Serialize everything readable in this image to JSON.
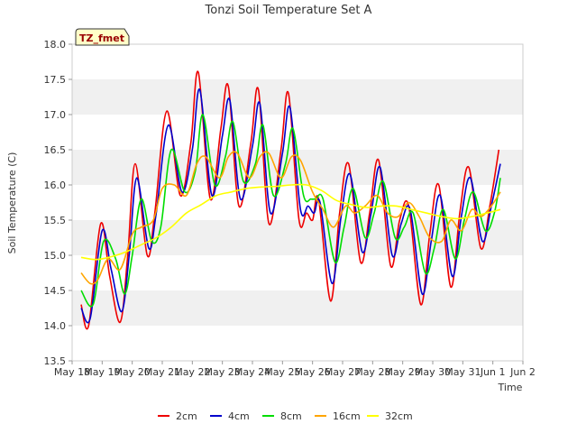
{
  "chart_data": {
    "type": "line",
    "title": "Tonzi Soil Temperature Set A",
    "xlabel": "Time",
    "ylabel": "Soil Temperature (C)",
    "annotation": "TZ_fmet",
    "xlim": [
      0,
      15
    ],
    "ylim": [
      13.5,
      18.0
    ],
    "x_ticks": [
      {
        "value": 0,
        "label": "May 18"
      },
      {
        "value": 1,
        "label": "May 19"
      },
      {
        "value": 2,
        "label": "May 20"
      },
      {
        "value": 3,
        "label": "May 21"
      },
      {
        "value": 4,
        "label": "May 22"
      },
      {
        "value": 5,
        "label": "May 23"
      },
      {
        "value": 6,
        "label": "May 24"
      },
      {
        "value": 7,
        "label": "May 25"
      },
      {
        "value": 8,
        "label": "May 26"
      },
      {
        "value": 9,
        "label": "May 27"
      },
      {
        "value": 10,
        "label": "May 28"
      },
      {
        "value": 11,
        "label": "May 29"
      },
      {
        "value": 12,
        "label": "May 30"
      },
      {
        "value": 13,
        "label": "May 31"
      },
      {
        "value": 14,
        "label": "Jun 1"
      },
      {
        "value": 15,
        "label": "Jun 2"
      }
    ],
    "y_ticks": [
      13.5,
      14.0,
      14.5,
      15.0,
      15.5,
      16.0,
      16.5,
      17.0,
      17.5,
      18.0
    ],
    "y_tick_labels": [
      "13.5",
      "14.0",
      "14.5",
      "15.0",
      "15.5",
      "16.0",
      "16.5",
      "17.0",
      "17.5",
      "18.0"
    ],
    "grid": "horizontal bands",
    "legend": "bottom",
    "series": [
      {
        "name": "2cm",
        "color": "#ee0000",
        "x": [
          0.3,
          0.55,
          0.95,
          1.25,
          1.6,
          1.85,
          2.1,
          2.5,
          2.75,
          3.15,
          3.6,
          3.95,
          4.2,
          4.6,
          4.95,
          5.2,
          5.55,
          5.95,
          6.2,
          6.55,
          6.95,
          7.2,
          7.55,
          7.8,
          8.0,
          8.2,
          8.6,
          8.9,
          9.2,
          9.6,
          9.9,
          10.2,
          10.6,
          10.9,
          11.2,
          11.6,
          11.9,
          12.2,
          12.6,
          12.9,
          13.2,
          13.6,
          13.9,
          14.2
        ],
        "values": [
          14.3,
          14.0,
          15.45,
          14.7,
          14.05,
          15.0,
          16.3,
          15.0,
          15.6,
          17.05,
          15.85,
          16.6,
          17.6,
          15.8,
          16.8,
          17.4,
          15.7,
          16.6,
          17.35,
          15.45,
          16.5,
          17.3,
          15.5,
          15.6,
          15.5,
          15.8,
          14.35,
          15.6,
          16.3,
          14.9,
          15.6,
          16.35,
          14.85,
          15.5,
          15.7,
          14.3,
          15.3,
          16.0,
          14.55,
          15.6,
          16.25,
          15.1,
          15.7,
          16.5
        ]
      },
      {
        "name": "4cm",
        "color": "#0000cc",
        "x": [
          0.3,
          0.6,
          1.0,
          1.3,
          1.65,
          1.9,
          2.15,
          2.55,
          2.8,
          3.2,
          3.65,
          4.0,
          4.25,
          4.65,
          5.0,
          5.25,
          5.6,
          6.0,
          6.25,
          6.6,
          7.0,
          7.25,
          7.6,
          7.85,
          8.05,
          8.25,
          8.65,
          8.95,
          9.25,
          9.65,
          9.95,
          10.25,
          10.65,
          10.95,
          11.25,
          11.65,
          11.95,
          12.25,
          12.65,
          12.95,
          13.25,
          13.65,
          13.95,
          14.25
        ],
        "values": [
          14.25,
          14.1,
          15.35,
          14.8,
          14.2,
          15.0,
          16.1,
          15.1,
          15.6,
          16.85,
          15.9,
          16.5,
          17.35,
          15.85,
          16.7,
          17.2,
          15.8,
          16.55,
          17.15,
          15.6,
          16.45,
          17.1,
          15.65,
          15.7,
          15.6,
          15.75,
          14.6,
          15.55,
          16.15,
          15.05,
          15.6,
          16.25,
          15.0,
          15.45,
          15.65,
          14.45,
          15.2,
          15.85,
          14.7,
          15.55,
          16.1,
          15.2,
          15.7,
          16.3
        ]
      },
      {
        "name": "8cm",
        "color": "#00dd00",
        "x": [
          0.3,
          0.7,
          1.05,
          1.45,
          1.75,
          2.0,
          2.3,
          2.65,
          2.95,
          3.3,
          3.75,
          4.1,
          4.35,
          4.75,
          5.1,
          5.35,
          5.7,
          6.1,
          6.35,
          6.7,
          7.1,
          7.35,
          7.7,
          7.95,
          8.1,
          8.35,
          8.75,
          9.05,
          9.35,
          9.75,
          10.05,
          10.35,
          10.75,
          11.05,
          11.35,
          11.75,
          12.05,
          12.35,
          12.75,
          13.05,
          13.35,
          13.75,
          14.05,
          14.25
        ],
        "values": [
          14.5,
          14.3,
          15.2,
          14.95,
          14.45,
          15.0,
          15.8,
          15.2,
          15.4,
          16.5,
          15.9,
          16.2,
          17.0,
          16.0,
          16.4,
          16.9,
          16.05,
          16.3,
          16.85,
          15.85,
          16.3,
          16.8,
          15.85,
          15.8,
          15.8,
          15.8,
          14.9,
          15.4,
          15.95,
          15.25,
          15.6,
          16.05,
          15.25,
          15.4,
          15.6,
          14.75,
          15.1,
          15.65,
          14.95,
          15.5,
          15.9,
          15.35,
          15.6,
          16.1
        ]
      },
      {
        "name": "16cm",
        "color": "#ffa500",
        "x": [
          0.3,
          0.6,
          0.85,
          1.2,
          1.6,
          2.0,
          2.3,
          2.7,
          3.0,
          3.4,
          3.8,
          4.15,
          4.45,
          4.9,
          5.2,
          5.5,
          5.9,
          6.25,
          6.55,
          6.95,
          7.3,
          7.6,
          8.0,
          8.35,
          8.7,
          9.1,
          9.4,
          9.75,
          10.15,
          10.5,
          10.85,
          11.2,
          11.55,
          11.9,
          12.3,
          12.6,
          12.95,
          13.3,
          13.6,
          13.95,
          14.25
        ],
        "values": [
          14.75,
          14.6,
          14.65,
          14.95,
          14.8,
          15.3,
          15.4,
          15.5,
          15.95,
          16.0,
          15.85,
          16.3,
          16.4,
          16.1,
          16.4,
          16.45,
          16.1,
          16.4,
          16.45,
          16.1,
          16.4,
          16.35,
          15.9,
          15.65,
          15.4,
          15.7,
          15.6,
          15.7,
          15.85,
          15.6,
          15.55,
          15.75,
          15.55,
          15.25,
          15.2,
          15.5,
          15.35,
          15.65,
          15.55,
          15.7,
          15.9
        ]
      },
      {
        "name": "32cm",
        "color": "#ffff00",
        "x": [
          0.3,
          0.8,
          1.3,
          1.8,
          2.3,
          2.8,
          3.3,
          3.8,
          4.3,
          4.8,
          5.3,
          5.8,
          6.3,
          6.8,
          7.3,
          7.8,
          8.3,
          8.8,
          9.3,
          9.8,
          10.3,
          10.8,
          11.3,
          11.8,
          12.3,
          12.8,
          13.3,
          13.8,
          14.25
        ],
        "values": [
          14.97,
          14.94,
          14.98,
          15.05,
          15.15,
          15.25,
          15.4,
          15.6,
          15.72,
          15.85,
          15.9,
          15.95,
          15.97,
          15.98,
          16.0,
          16.0,
          15.92,
          15.78,
          15.72,
          15.68,
          15.7,
          15.7,
          15.65,
          15.6,
          15.55,
          15.52,
          15.55,
          15.6,
          15.65
        ]
      }
    ]
  }
}
